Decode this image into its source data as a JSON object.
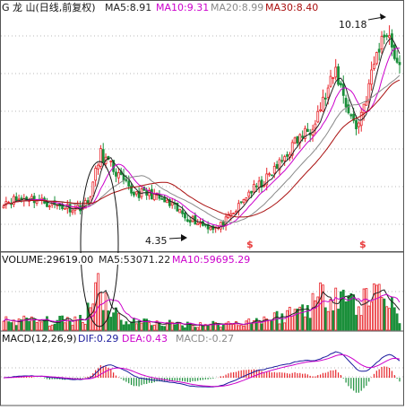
{
  "colors": {
    "up": "#e8242a",
    "down": "#1a8f3a",
    "ma5": "#222222",
    "ma10": "#cc00cc",
    "ma20": "#8a8a8a",
    "ma30": "#aa1010",
    "dif": "#1a1a9c",
    "dea": "#cc00cc",
    "grid": "#b8b8b8",
    "panel_border": "#555555",
    "annotation": "#111111",
    "event_marker": "#e83a3a"
  },
  "price_panel": {
    "stock_label": "G 龙  山(日线,前复权)",
    "ma5_label": "MA5:8.91",
    "ma10_label": "MA10:9.31",
    "ma20_label": "MA20:8.99",
    "ma30_label": "MA30:8.40",
    "high_annotation": "10.18",
    "low_annotation": "4.35",
    "event_marker_glyph": "$"
  },
  "volume_panel": {
    "volume_label": "VOLUME:29619.00",
    "ma5_label": "MA5:53071.22",
    "ma10_label": "MA10:59695.29"
  },
  "macd_panel": {
    "macd_label": "MACD(12,26,9)",
    "dif_label": "DIF:0.29",
    "dea_label": "DEA:0.43",
    "macd_value_label": "MACD:-0.27"
  },
  "chart_data": [
    {
      "type": "candlestick",
      "title": "G 龙  山(日线,前复权)",
      "ylim": [
        3.9,
        10.5
      ],
      "grid": true,
      "series": [
        {
          "name": "MA5",
          "value": 8.91
        },
        {
          "name": "MA10",
          "value": 9.31
        },
        {
          "name": "MA20",
          "value": 8.99
        },
        {
          "name": "MA30",
          "value": 8.4
        }
      ],
      "annotations": [
        {
          "label": "10.18",
          "y": 10.18
        },
        {
          "label": "4.35",
          "y": 4.35
        }
      ],
      "close_path": [
        {
          "day": 0,
          "close": 5.25
        },
        {
          "day": 10,
          "close": 5.35
        },
        {
          "day": 20,
          "close": 5.15
        },
        {
          "day": 28,
          "close": 5.05
        },
        {
          "day": 33,
          "close": 5.2
        },
        {
          "day": 38,
          "close": 6.6
        },
        {
          "day": 43,
          "close": 6.15
        },
        {
          "day": 50,
          "close": 5.5
        },
        {
          "day": 58,
          "close": 5.45
        },
        {
          "day": 66,
          "close": 5.1
        },
        {
          "day": 72,
          "close": 4.8
        },
        {
          "day": 78,
          "close": 4.6
        },
        {
          "day": 84,
          "close": 4.5
        },
        {
          "day": 90,
          "close": 4.9
        },
        {
          "day": 96,
          "close": 5.5
        },
        {
          "day": 102,
          "close": 5.8
        },
        {
          "day": 108,
          "close": 6.3
        },
        {
          "day": 114,
          "close": 6.9
        },
        {
          "day": 120,
          "close": 7.3
        },
        {
          "day": 126,
          "close": 8.2
        },
        {
          "day": 130,
          "close": 8.9
        },
        {
          "day": 134,
          "close": 8.0
        },
        {
          "day": 138,
          "close": 7.3
        },
        {
          "day": 142,
          "close": 8.2
        },
        {
          "day": 146,
          "close": 9.4
        },
        {
          "day": 150,
          "close": 10.1
        },
        {
          "day": 153,
          "close": 9.4
        },
        {
          "day": 155,
          "close": 8.9
        }
      ]
    },
    {
      "type": "bar",
      "title": "VOLUME:29619.00",
      "series": [
        {
          "name": "VOLUME",
          "value": 29619.0
        },
        {
          "name": "MA5",
          "value": 53071.22
        },
        {
          "name": "MA10",
          "value": 59695.29
        }
      ],
      "ylim": [
        0,
        130000
      ],
      "volume_path": [
        {
          "day": 0,
          "volume": 22000
        },
        {
          "day": 20,
          "volume": 18000
        },
        {
          "day": 32,
          "volume": 25000
        },
        {
          "day": 36,
          "volume": 110000
        },
        {
          "day": 40,
          "volume": 65000
        },
        {
          "day": 46,
          "volume": 20000
        },
        {
          "day": 70,
          "volume": 12000
        },
        {
          "day": 90,
          "volume": 14000
        },
        {
          "day": 110,
          "volume": 30000
        },
        {
          "day": 122,
          "volume": 60000
        },
        {
          "day": 130,
          "volume": 95000
        },
        {
          "day": 138,
          "volume": 50000
        },
        {
          "day": 148,
          "volume": 90000
        },
        {
          "day": 155,
          "volume": 30000
        }
      ]
    },
    {
      "type": "line",
      "title": "MACD(12,26,9)",
      "series": [
        {
          "name": "DIF",
          "value": 0.29
        },
        {
          "name": "DEA",
          "value": 0.43
        },
        {
          "name": "MACD",
          "value": -0.27
        }
      ],
      "ylim": [
        -0.7,
        0.9
      ]
    }
  ]
}
